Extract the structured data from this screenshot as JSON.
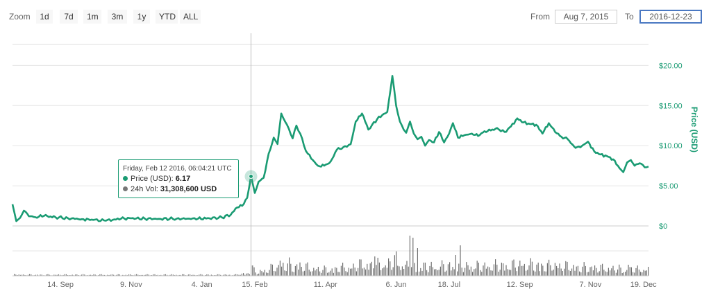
{
  "toolbar": {
    "zoom_label": "Zoom",
    "zoom_buttons": [
      "1d",
      "7d",
      "1m",
      "3m",
      "1y",
      "YTD",
      "ALL"
    ],
    "from_label": "From",
    "from_value": "Aug 7, 2015",
    "to_label": "To",
    "to_value": "2016-12-23"
  },
  "tooltip": {
    "date": "Friday, Feb 12 2016, 06:04:21 UTC",
    "price_label": "Price (USD):",
    "price_value": "6.17",
    "vol_label": "24h Vol:",
    "vol_value": "31,308,600 USD"
  },
  "colors": {
    "price_line": "#1a9b73",
    "volume_bars": "#6f6f6f",
    "grid": "#e6e6e6",
    "tooltip_border": "#1a9b73"
  },
  "chart_data": {
    "type": "line",
    "ylabel": "Price (USD)",
    "ylim": [
      0,
      24
    ],
    "yticks": [
      "$0",
      "$5.00",
      "$10.00",
      "$15.00",
      "$20.00"
    ],
    "ytick_values": [
      0,
      5,
      10,
      15,
      20
    ],
    "x_ticks": [
      "14. Sep",
      "9. Nov",
      "4. Jan",
      "15. Feb",
      "11. Apr",
      "6. Jun",
      "18. Jul",
      "12. Sep",
      "7. Nov",
      "19. Dec"
    ],
    "x_tick_dates": [
      "2015-09-14",
      "2015-11-09",
      "2016-01-04",
      "2016-02-15",
      "2016-04-11",
      "2016-06-06",
      "2016-07-18",
      "2016-09-12",
      "2016-11-07",
      "2016-12-19"
    ],
    "xlim": [
      "2015-08-07",
      "2016-12-23"
    ],
    "grid": true,
    "crosshair_date": "2016-02-12",
    "series": [
      {
        "name": "Price (USD)",
        "x": [
          "2015-08-07",
          "2015-08-10",
          "2015-08-13",
          "2015-08-16",
          "2015-08-20",
          "2015-08-25",
          "2015-09-01",
          "2015-09-10",
          "2015-09-20",
          "2015-10-01",
          "2015-10-10",
          "2015-10-20",
          "2015-11-01",
          "2015-11-09",
          "2015-11-20",
          "2015-12-01",
          "2015-12-15",
          "2016-01-01",
          "2016-01-10",
          "2016-01-20",
          "2016-01-27",
          "2016-02-01",
          "2016-02-05",
          "2016-02-09",
          "2016-02-12",
          "2016-02-15",
          "2016-02-18",
          "2016-02-22",
          "2016-02-26",
          "2016-03-01",
          "2016-03-04",
          "2016-03-07",
          "2016-03-10",
          "2016-03-13",
          "2016-03-16",
          "2016-03-19",
          "2016-03-22",
          "2016-03-25",
          "2016-03-28",
          "2016-04-01",
          "2016-04-05",
          "2016-04-10",
          "2016-04-15",
          "2016-04-20",
          "2016-04-25",
          "2016-05-01",
          "2016-05-05",
          "2016-05-10",
          "2016-05-15",
          "2016-05-18",
          "2016-05-22",
          "2016-05-26",
          "2016-05-30",
          "2016-06-03",
          "2016-06-06",
          "2016-06-09",
          "2016-06-12",
          "2016-06-14",
          "2016-06-17",
          "2016-06-20",
          "2016-06-23",
          "2016-06-26",
          "2016-06-29",
          "2016-07-02",
          "2016-07-06",
          "2016-07-10",
          "2016-07-14",
          "2016-07-18",
          "2016-07-21",
          "2016-07-25",
          "2016-07-30",
          "2016-08-05",
          "2016-08-10",
          "2016-08-15",
          "2016-08-20",
          "2016-08-25",
          "2016-08-31",
          "2016-09-05",
          "2016-09-10",
          "2016-09-15",
          "2016-09-20",
          "2016-09-25",
          "2016-09-30",
          "2016-10-05",
          "2016-10-10",
          "2016-10-15",
          "2016-10-20",
          "2016-10-25",
          "2016-10-30",
          "2016-11-05",
          "2016-11-10",
          "2016-11-15",
          "2016-11-20",
          "2016-11-25",
          "2016-11-30",
          "2016-12-03",
          "2016-12-06",
          "2016-12-09",
          "2016-12-12",
          "2016-12-16",
          "2016-12-20",
          "2016-12-23"
        ],
        "values": [
          2.7,
          0.6,
          1.0,
          1.9,
          1.2,
          1.1,
          1.25,
          1.1,
          0.95,
          0.85,
          0.75,
          0.65,
          0.9,
          0.95,
          0.9,
          0.88,
          0.9,
          0.9,
          0.95,
          1.05,
          1.4,
          2.3,
          2.5,
          3.5,
          6.17,
          4.1,
          5.5,
          6.0,
          9.0,
          11.0,
          10.2,
          14.0,
          13.0,
          12.1,
          10.9,
          12.5,
          11.5,
          10.0,
          9.0,
          8.2,
          7.5,
          7.5,
          8.0,
          9.5,
          9.8,
          10.2,
          13.0,
          14.0,
          12.0,
          12.6,
          13.3,
          13.8,
          14.2,
          18.7,
          15.0,
          13.0,
          12.0,
          11.6,
          13.0,
          11.5,
          10.8,
          11.1,
          10.0,
          10.7,
          10.4,
          11.7,
          10.4,
          11.5,
          12.8,
          11.0,
          11.3,
          11.5,
          11.2,
          11.8,
          11.9,
          12.2,
          11.7,
          12.4,
          13.4,
          12.9,
          12.7,
          12.6,
          11.5,
          12.8,
          11.7,
          11.1,
          10.8,
          9.9,
          9.8,
          10.5,
          9.3,
          8.9,
          8.7,
          8.3,
          7.2,
          6.7,
          7.9,
          8.2,
          7.5,
          7.8,
          7.3,
          7.4
        ]
      }
    ]
  }
}
